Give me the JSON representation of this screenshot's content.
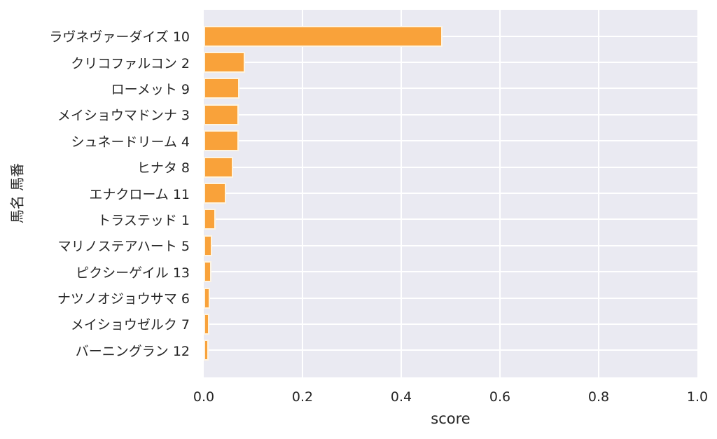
{
  "figure": {
    "background": "#ffffff"
  },
  "chart_data": {
    "type": "bar",
    "orientation": "horizontal",
    "title": "",
    "xlabel": "score",
    "ylabel": "馬名 馬番",
    "xlim": [
      0.0,
      1.0
    ],
    "xtick_labels": [
      "0.0",
      "0.2",
      "0.4",
      "0.6",
      "0.8",
      "1.0"
    ],
    "xtick_values": [
      0.0,
      0.2,
      0.4,
      0.6,
      0.8,
      1.0
    ],
    "grid": true,
    "legend": false,
    "style": "seaborn-darkgrid",
    "colors": {
      "bar": "#f9a23a",
      "bar_edge": "#fdf4e3",
      "plot_background": "#eaeaf2",
      "gridline": "#ffffff",
      "text": "#262626"
    },
    "categories": [
      "ラヴネヴァーダイズ 10",
      "クリコファルコン 2",
      "ローメット 9",
      "メイショウマドンナ 3",
      "シュネードリーム 4",
      "ヒナタ 8",
      "エナクローム 11",
      "トラステッド 1",
      "マリノステアハート 5",
      "ピクシーゲイル 13",
      "ナツノオジョウサマ 6",
      "メイショウゼルク 7",
      "バーニングラン 12"
    ],
    "values": [
      0.483,
      0.083,
      0.073,
      0.071,
      0.071,
      0.06,
      0.045,
      0.024,
      0.017,
      0.015,
      0.013,
      0.011,
      0.01
    ]
  }
}
